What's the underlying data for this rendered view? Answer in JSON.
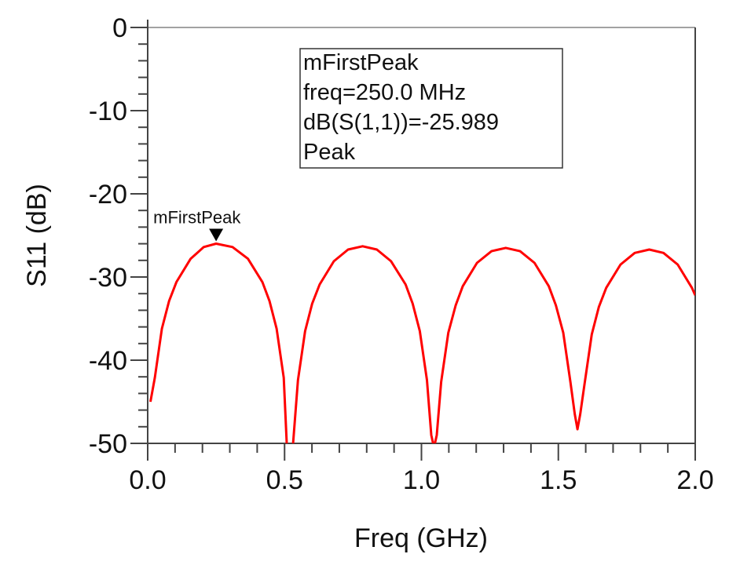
{
  "chart_data": {
    "type": "line",
    "title": "",
    "xlabel": "Freq (GHz)",
    "ylabel": "S11 (dB)",
    "xlim": [
      0.0,
      2.0
    ],
    "ylim": [
      -50,
      0
    ],
    "x_ticks": [
      0.0,
      0.5,
      1.0,
      1.5,
      2.0
    ],
    "x_tick_labels": [
      "0.0",
      "0.5",
      "1.0",
      "1.5",
      "2.0"
    ],
    "x_minor_step": 0.1,
    "y_ticks": [
      0,
      -10,
      -20,
      -30,
      -40,
      -50
    ],
    "y_tick_labels": [
      "0",
      "-10",
      "-20",
      "-30",
      "-40",
      "-50"
    ],
    "y_minor_step": 2,
    "grid": false,
    "series": [
      {
        "name": "dB(S(1,1))",
        "color": "#ff0000",
        "x": [
          0.01,
          0.026,
          0.052,
          0.078,
          0.105,
          0.157,
          0.205,
          0.25,
          0.31,
          0.366,
          0.419,
          0.445,
          0.471,
          0.497,
          0.508,
          0.52,
          0.531,
          0.549,
          0.575,
          0.601,
          0.628,
          0.68,
          0.732,
          0.785,
          0.837,
          0.889,
          0.942,
          0.968,
          0.994,
          1.02,
          1.036,
          1.046,
          1.056,
          1.072,
          1.098,
          1.125,
          1.151,
          1.203,
          1.256,
          1.308,
          1.36,
          1.413,
          1.465,
          1.491,
          1.518,
          1.544,
          1.56,
          1.57,
          1.58,
          1.596,
          1.622,
          1.648,
          1.675,
          1.727,
          1.779,
          1.832,
          1.884,
          1.936,
          1.988,
          2.0
        ],
        "y": [
          -45.0,
          -42.1,
          -36.2,
          -32.9,
          -30.6,
          -27.8,
          -26.4,
          -25.989,
          -26.4,
          -27.8,
          -30.6,
          -32.9,
          -36.2,
          -42.1,
          -50,
          -60,
          -50,
          -42.4,
          -36.5,
          -33.2,
          -30.9,
          -28.1,
          -26.7,
          -26.3,
          -26.7,
          -28.1,
          -30.9,
          -33.2,
          -36.5,
          -42.4,
          -49,
          -50.5,
          -49,
          -42.6,
          -36.7,
          -33.4,
          -31.1,
          -28.3,
          -26.9,
          -26.5,
          -26.9,
          -28.3,
          -31.1,
          -33.4,
          -36.7,
          -42.6,
          -46.5,
          -48.3,
          -46.5,
          -42.8,
          -36.9,
          -33.6,
          -31.3,
          -28.5,
          -27.1,
          -26.7,
          -27.1,
          -28.5,
          -31.3,
          -32.2
        ]
      }
    ],
    "markers": [
      {
        "name": "mFirstPeak",
        "x": 0.25,
        "y": -25.989,
        "readout": [
          "mFirstPeak",
          "freq=250.0 MHz",
          "dB(S(1,1))=-25.989",
          "Peak"
        ]
      }
    ]
  }
}
